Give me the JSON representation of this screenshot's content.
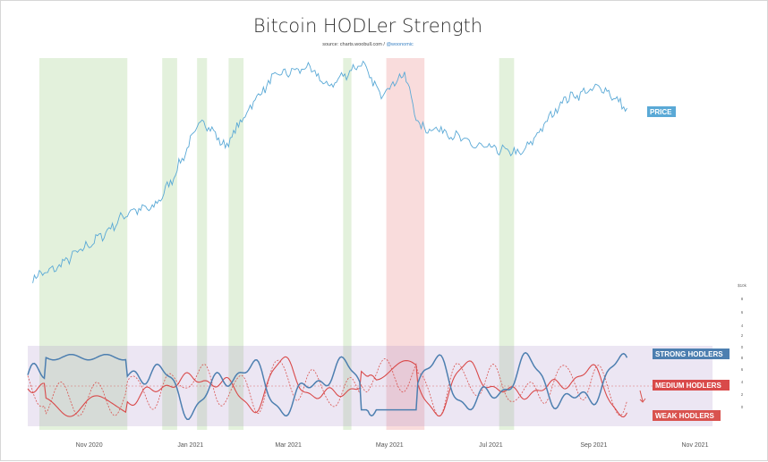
{
  "chart_data": {
    "type": "line",
    "title": "Bitcoin HODLer Strength",
    "source_prefix": "source: charts.woobull.com / ",
    "source_handle": "@woonomic",
    "x_labels": [
      "Nov 2020",
      "Jan 2021",
      "Mar 2021",
      "May 2021",
      "Jul 2021",
      "Sep 2021",
      "Nov 2021"
    ],
    "x_range": [
      "2020-09-25",
      "2021-11-25"
    ],
    "upper_y_tick_labels": [
      "",
      "",
      "",
      "",
      "",
      ""
    ],
    "lower_y_tick_labels": [
      "$10k",
      "8",
      "6",
      "4",
      "2",
      "0",
      "8",
      "6",
      "4",
      "2",
      "0",
      "",
      "",
      ""
    ],
    "price_anchors": [
      [
        "2020-09-28",
        10700
      ],
      [
        "2020-10-10",
        11300
      ],
      [
        "2020-10-25",
        13100
      ],
      [
        "2020-11-10",
        15300
      ],
      [
        "2020-11-25",
        18500
      ],
      [
        "2020-12-10",
        19000
      ],
      [
        "2020-12-20",
        23500
      ],
      [
        "2021-01-08",
        40000
      ],
      [
        "2021-01-22",
        31500
      ],
      [
        "2021-02-08",
        46000
      ],
      [
        "2021-02-21",
        57000
      ],
      [
        "2021-03-13",
        61000
      ],
      [
        "2021-03-25",
        52000
      ],
      [
        "2021-04-14",
        63500
      ],
      [
        "2021-04-25",
        49000
      ],
      [
        "2021-05-10",
        58000
      ],
      [
        "2021-05-19",
        37000
      ],
      [
        "2021-06-01",
        36500
      ],
      [
        "2021-06-22",
        31700
      ],
      [
        "2021-07-20",
        29800
      ],
      [
        "2021-08-14",
        47000
      ],
      [
        "2021-09-06",
        52000
      ],
      [
        "2021-09-21",
        43000
      ]
    ],
    "green_bands": [
      [
        "2020-10-02",
        "2020-11-24"
      ],
      [
        "2020-12-15",
        "2020-12-24"
      ],
      [
        "2021-01-05",
        "2021-01-11"
      ],
      [
        "2021-01-24",
        "2021-02-02"
      ],
      [
        "2021-04-03",
        "2021-04-08"
      ],
      [
        "2021-07-06",
        "2021-07-15"
      ]
    ],
    "red_bands": [
      [
        "2021-04-29",
        "2021-05-22"
      ]
    ],
    "series": [
      {
        "name": "PRICE",
        "color": "#5aa9d6"
      },
      {
        "name": "STRONG HODLERS",
        "color": "#4d7fb0"
      },
      {
        "name": "MEDIUM HODLERS",
        "color": "#d94a4a"
      },
      {
        "name": "WEAK HODLERS",
        "color": "#d9534f"
      }
    ],
    "grid": false
  }
}
